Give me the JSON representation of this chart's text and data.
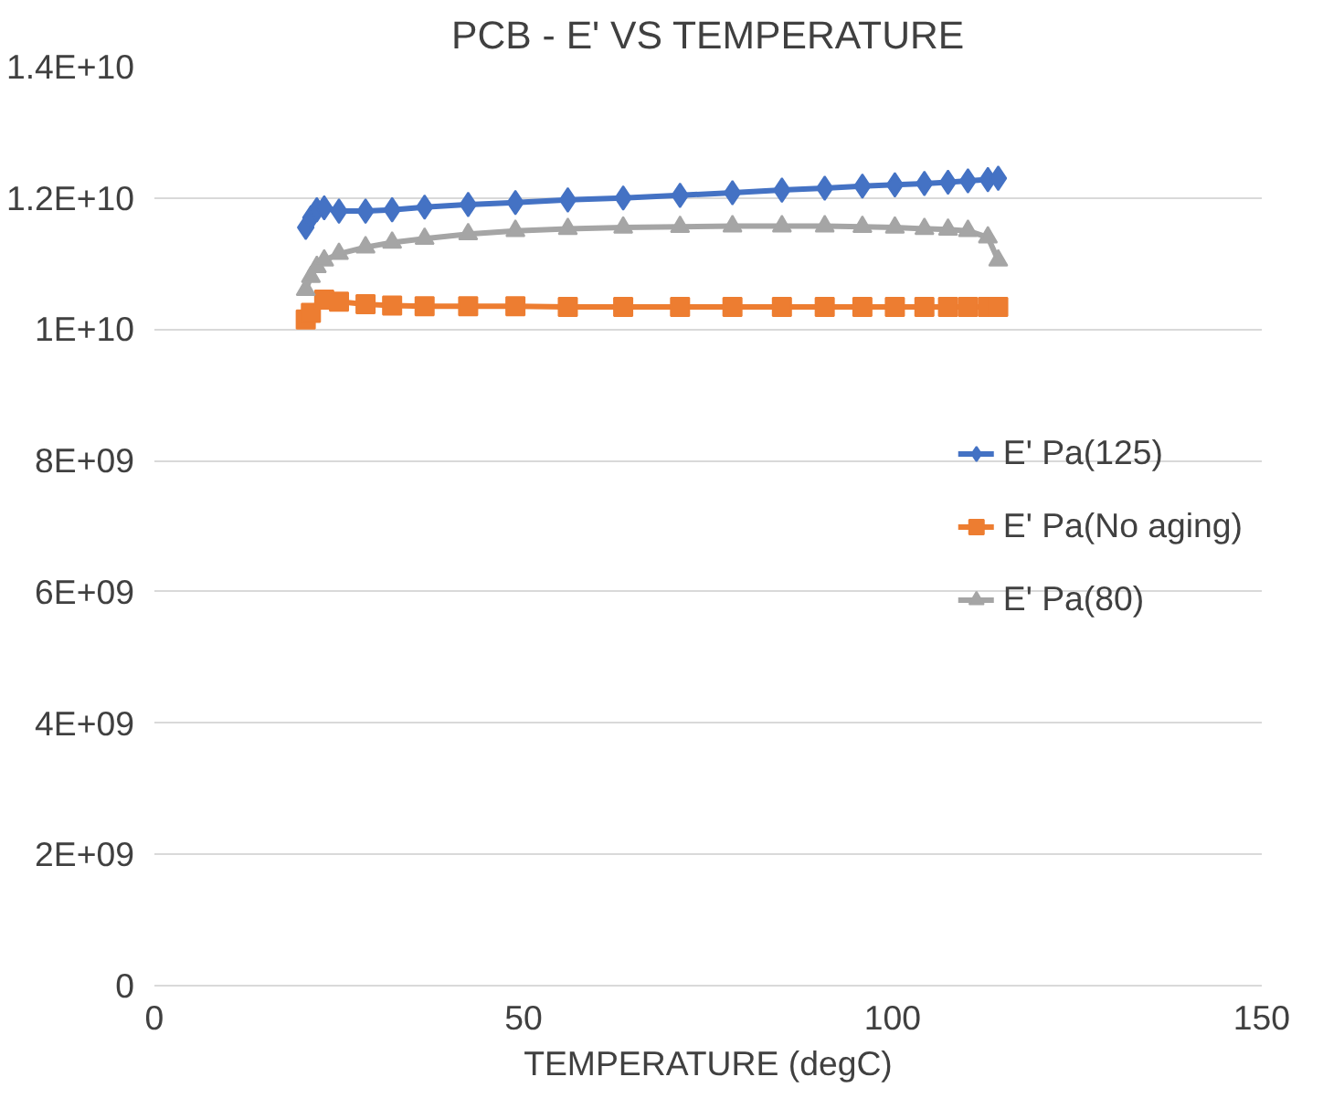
{
  "chart_data": {
    "type": "line",
    "title": "PCB - E' VS TEMPERATURE",
    "xlabel": "TEMPERATURE (degC)",
    "x": [
      20.5,
      21.2,
      22,
      23,
      25,
      28.6,
      32.2,
      36.6,
      42.5,
      48.9,
      56,
      63.5,
      71.2,
      78.3,
      85,
      90.8,
      95.9,
      100.3,
      104.3,
      107.5,
      110.2,
      112.9,
      114.3
    ],
    "series": [
      {
        "name": "E' Pa(125)",
        "color": "#4472c4",
        "marker": "diamond",
        "values": [
          11550000000,
          11700000000,
          11820000000,
          11850000000,
          11800000000,
          11800000000,
          11820000000,
          11860000000,
          11900000000,
          11930000000,
          11970000000,
          12000000000,
          12040000000,
          12080000000,
          12120000000,
          12150000000,
          12180000000,
          12200000000,
          12220000000,
          12240000000,
          12260000000,
          12280000000,
          12300000000
        ]
      },
      {
        "name": "E' Pa(No aging)",
        "color": "#ed7d31",
        "marker": "square",
        "values": [
          10150000000,
          10250000000,
          null,
          10450000000,
          10420000000,
          10380000000,
          10360000000,
          10350000000,
          10350000000,
          10350000000,
          10340000000,
          10340000000,
          10340000000,
          10340000000,
          10340000000,
          10340000000,
          10340000000,
          10340000000,
          10340000000,
          10340000000,
          10340000000,
          10340000000,
          10340000000
        ]
      },
      {
        "name": "E' Pa(80)",
        "color": "#a5a5a5",
        "marker": "triangle",
        "values": [
          10600000000,
          10800000000,
          10950000000,
          11050000000,
          11150000000,
          11250000000,
          11320000000,
          11380000000,
          11450000000,
          11500000000,
          11530000000,
          11550000000,
          11560000000,
          11570000000,
          11570000000,
          11570000000,
          11560000000,
          11550000000,
          11530000000,
          11520000000,
          11500000000,
          11400000000,
          11050000000
        ]
      }
    ],
    "xlim": [
      0,
      150
    ],
    "xticks": [
      0,
      50,
      100,
      150
    ],
    "ylim": [
      0,
      14000000000
    ],
    "yticks": [
      0,
      {
        "value": 2000000000,
        "label": "2E+09"
      },
      {
        "value": 4000000000,
        "label": "4E+09"
      },
      {
        "value": 6000000000,
        "label": "6E+09"
      },
      {
        "value": 8000000000,
        "label": "8E+09"
      },
      {
        "value": 10000000000,
        "label": "1E+10"
      },
      {
        "value": 12000000000,
        "label": "1.2E+10"
      },
      {
        "value": 14000000000,
        "label": "1.4E+10"
      }
    ],
    "grid": "y",
    "legend": "right",
    "line_style": "solid"
  }
}
